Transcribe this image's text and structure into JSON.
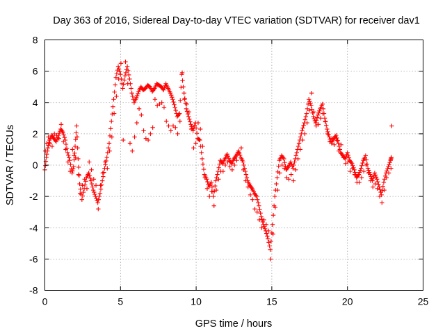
{
  "chart_data": {
    "type": "scatter",
    "title": "Day 363 of 2016, Sidereal Day-to-day VTEC variation (SDTVAR) for receiver dav1",
    "xlabel": "GPS time / hours",
    "ylabel": "SDTVAR / TECUs",
    "xlim": [
      0,
      25
    ],
    "ylim": [
      -8,
      8
    ],
    "xticks": [
      0,
      5,
      10,
      15,
      20,
      25
    ],
    "yticks": [
      -8,
      -6,
      -4,
      -2,
      0,
      2,
      4,
      6,
      8
    ],
    "grid": true,
    "marker": "+",
    "color": "#ff0000",
    "series": [
      {
        "name": "dav1",
        "x": [
          0.0,
          0.1,
          0.2,
          0.3,
          0.45,
          0.6,
          0.75,
          0.9,
          1.05,
          1.2,
          1.35,
          1.5,
          1.65,
          1.8,
          1.9,
          2.0,
          2.1,
          2.2,
          2.3,
          2.45,
          2.6,
          2.75,
          2.9,
          3.05,
          3.2,
          3.35,
          3.5,
          3.65,
          3.8,
          3.95,
          4.1,
          4.25,
          4.4,
          4.55,
          4.7,
          4.85,
          5.0,
          5.15,
          5.3,
          5.45,
          5.6,
          5.75,
          5.9,
          6.05,
          6.2,
          6.35,
          6.5,
          6.65,
          6.8,
          6.95,
          7.1,
          7.25,
          7.4,
          7.55,
          7.7,
          7.85,
          8.0,
          8.15,
          8.3,
          8.45,
          8.6,
          8.75,
          8.9,
          9.05,
          9.2,
          9.35,
          9.5,
          9.65,
          9.8,
          9.95,
          10.1,
          10.25,
          10.4,
          10.55,
          10.7,
          10.85,
          11.0,
          11.15,
          11.3,
          11.45,
          11.6,
          11.75,
          11.9,
          12.05,
          12.2,
          12.35,
          12.5,
          12.65,
          12.8,
          12.95,
          13.1,
          13.25,
          13.4,
          13.55,
          13.7,
          13.85,
          14.0,
          14.15,
          14.3,
          14.45,
          14.6,
          14.75,
          14.9,
          15.05,
          15.2,
          15.35,
          15.5,
          15.65,
          15.8,
          15.95,
          16.1,
          16.25,
          16.4,
          16.55,
          16.7,
          16.85,
          17.0,
          17.15,
          17.3,
          17.45,
          17.6,
          17.75,
          17.9,
          18.05,
          18.2,
          18.35,
          18.5,
          18.65,
          18.8,
          18.95,
          19.1,
          19.25,
          19.4,
          19.55,
          19.7,
          19.85,
          20.0,
          20.15,
          20.3,
          20.45,
          20.6,
          20.75,
          20.9,
          21.05,
          21.2,
          21.35,
          21.5,
          21.65,
          21.8,
          21.95,
          22.1,
          22.25,
          22.4,
          22.55,
          22.7,
          22.85,
          22.9
        ],
        "y": [
          -0.3,
          0.5,
          1.1,
          1.6,
          1.9,
          1.7,
          1.5,
          1.9,
          2.3,
          2.1,
          1.6,
          0.8,
          0.3,
          -0.5,
          -0.1,
          1.2,
          2.5,
          0.4,
          -1.2,
          -2.2,
          -1.5,
          -0.8,
          -0.5,
          -1.0,
          -1.6,
          -2.0,
          -2.4,
          -1.8,
          -1.0,
          -0.2,
          0.5,
          1.4,
          2.8,
          4.2,
          5.6,
          6.3,
          5.8,
          4.9,
          5.7,
          6.3,
          5.5,
          4.6,
          4.0,
          4.3,
          4.7,
          5.0,
          4.8,
          4.9,
          5.1,
          5.0,
          4.7,
          4.9,
          5.2,
          5.1,
          5.0,
          4.8,
          5.2,
          4.9,
          4.6,
          4.2,
          3.7,
          3.1,
          3.3,
          5.8,
          4.6,
          3.6,
          3.1,
          2.6,
          2.2,
          2.7,
          1.7,
          1.6,
          0.4,
          -0.6,
          -0.9,
          -1.4,
          -1.1,
          -2.0,
          -1.0,
          -0.4,
          0.3,
          0.1,
          0.4,
          0.7,
          0.3,
          0.1,
          0.4,
          0.6,
          0.9,
          0.5,
          0.2,
          -0.4,
          -1.0,
          -1.3,
          -1.5,
          -1.8,
          -2.0,
          -2.6,
          -3.3,
          -3.8,
          -4.2,
          -4.7,
          -5.4,
          -3.8,
          -2.0,
          -0.8,
          0.3,
          0.6,
          0.4,
          -0.3,
          -0.1,
          0.2,
          -0.2,
          0.4,
          1.0,
          1.6,
          2.2,
          2.7,
          3.3,
          4.2,
          3.8,
          3.1,
          2.7,
          3.2,
          3.6,
          3.9,
          3.0,
          2.3,
          1.8,
          1.4,
          1.7,
          1.9,
          1.4,
          0.8,
          0.6,
          0.4,
          0.8,
          0.3,
          0.1,
          -0.3,
          -0.8,
          -0.6,
          -0.2,
          0.3,
          0.6,
          -0.2,
          -0.6,
          -1.0,
          -0.5,
          -0.9,
          -1.4,
          -1.9,
          -1.1,
          -0.5,
          -0.1,
          0.3,
          0.5
        ],
        "y2": [
          0.9,
          1.4,
          1.8,
          1.4,
          1.2,
          2.0,
          1.9,
          1.7,
          2.6,
          1.5,
          1.0,
          0.2,
          -0.4,
          1.0,
          0.6,
          0.5,
          1.8,
          -0.6,
          -1.8,
          -1.3,
          -0.9,
          -1.5,
          0.2,
          -0.3,
          -0.9,
          -1.3,
          -2.8,
          -1.3,
          -0.5,
          0.2,
          -0.2,
          0.9,
          1.8,
          3.3,
          4.4,
          5.5,
          6.5,
          1.6,
          6.6,
          5.2,
          1.4,
          0.9,
          1.8,
          2.7,
          3.6,
          3.2,
          2.2,
          1.7,
          1.6,
          2.0,
          2.4,
          4.2,
          3.8,
          3.9,
          4.0,
          3.7,
          2.8,
          2.5,
          2.2,
          2.5,
          2.4,
          2.0,
          2.8,
          5.9,
          4.2,
          3.9,
          3.4,
          2.3,
          1.1,
          1.4,
          2.7,
          2.3,
          1.2,
          -0.8,
          -1.5,
          -2.0,
          -1.7,
          -2.6,
          -1.6,
          -0.9,
          -0.4,
          -0.4,
          0.0,
          0.2,
          -0.1,
          -0.3,
          0.0,
          0.3,
          0.8,
          1.1,
          -0.3,
          -1.0,
          -1.4,
          -1.9,
          -2.2,
          -2.8,
          -3.0,
          -3.5,
          -4.0,
          -3.5,
          -3.8,
          -4.2,
          -6.0,
          -4.4,
          -2.7,
          -1.6,
          -0.5,
          0.0,
          -0.2,
          -0.8,
          -0.9,
          -0.6,
          -1.0,
          -0.3,
          0.4,
          1.0,
          1.6,
          2.0,
          2.7,
          3.5,
          4.6,
          3.4,
          2.5,
          2.6,
          3.0,
          3.3,
          2.8,
          2.0,
          1.5,
          1.7,
          1.3,
          1.6,
          0.9,
          1.3,
          0.5,
          0.1,
          0.2,
          -0.4,
          -0.2,
          -0.6,
          -1.1,
          -1.1,
          -0.8,
          -0.4,
          0.0,
          -0.5,
          -1.0,
          -1.4,
          -1.2,
          -1.5,
          -2.0,
          -2.4,
          -1.6,
          -0.8,
          -0.5,
          -0.2,
          2.5
        ]
      }
    ]
  }
}
